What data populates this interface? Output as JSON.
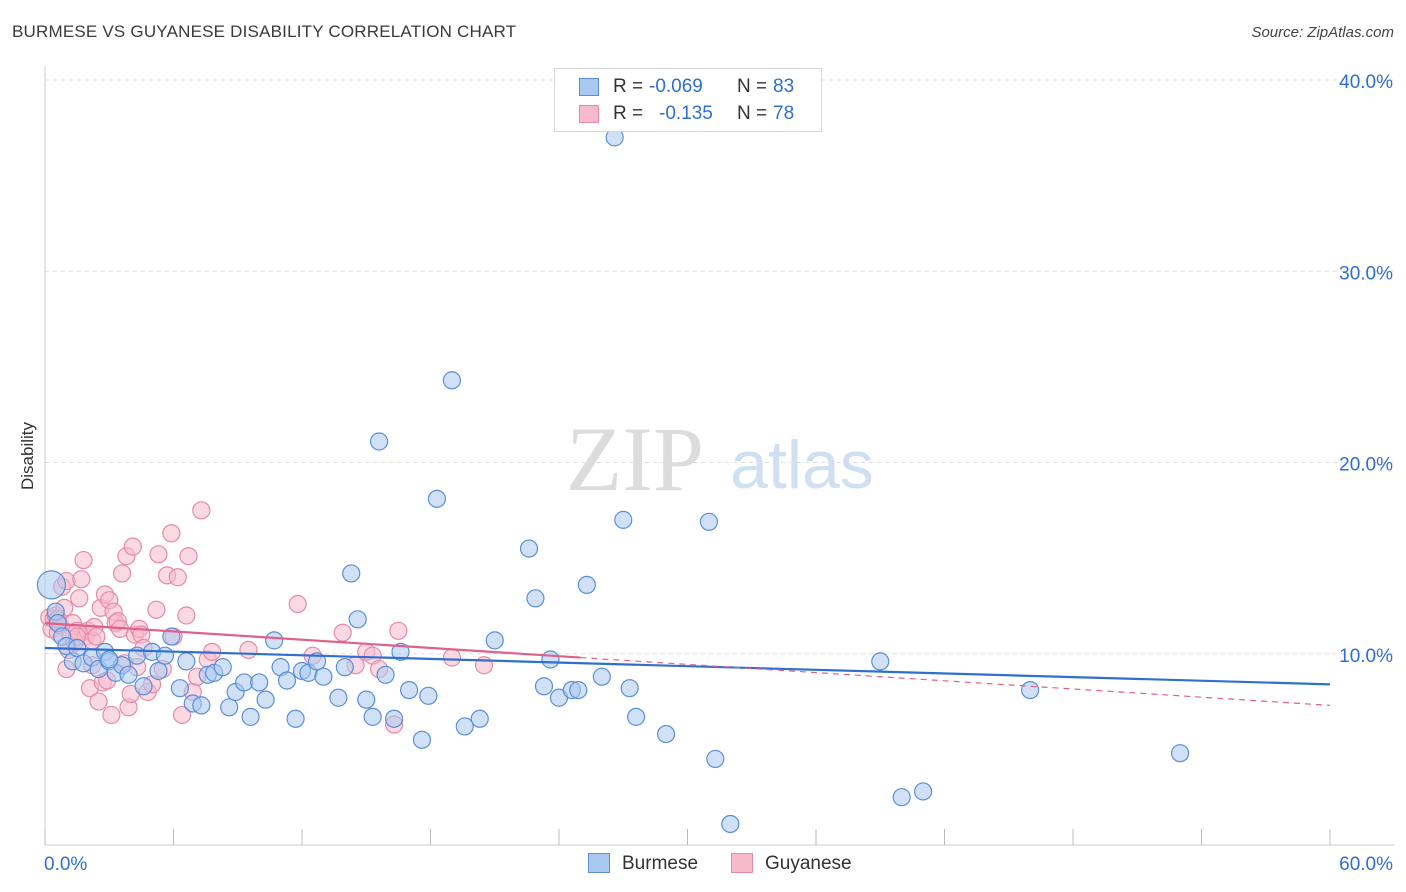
{
  "title": "BURMESE VS GUYANESE DISABILITY CORRELATION CHART",
  "source": "Source: ZipAtlas.com",
  "watermark": {
    "zip": "ZIP",
    "atlas": "atlas"
  },
  "legend_top": {
    "rows": [
      {
        "r_label": "R =",
        "r_value": "-0.069",
        "n_label": "N =",
        "n_value": "83"
      },
      {
        "r_label": "R =",
        "r_value": "-0.135",
        "n_label": "N =",
        "n_value": "78"
      }
    ]
  },
  "legend_bottom": [
    "Burmese",
    "Guyanese"
  ],
  "colors": {
    "burmese_fill": "#a9c8f0",
    "burmese_stroke": "#5a8fd8",
    "burmese_line": "#2f6fd0",
    "guyanese_fill": "#f7b9cc",
    "guyanese_stroke": "#e68aa8",
    "guyanese_line": "#e0608c",
    "axis_value_text": "#2f6fd0",
    "grid": "#dddddd"
  },
  "chart_data": {
    "type": "scatter",
    "title": "BURMESE VS GUYANESE DISABILITY CORRELATION CHART",
    "xlabel": "",
    "ylabel": "Disability",
    "xlim": [
      0,
      60
    ],
    "ylim": [
      0,
      40
    ],
    "x_tick_labels": [
      "0.0%",
      "60.0%"
    ],
    "y_tick_labels": [
      "10.0%",
      "20.0%",
      "30.0%",
      "40.0%"
    ],
    "y_ticks": [
      10,
      20,
      30,
      40
    ],
    "grid": true,
    "legend_position": "top-center",
    "series": [
      {
        "name": "Burmese",
        "r": -0.069,
        "n": 83,
        "trend": {
          "x": [
            0,
            60
          ],
          "y": [
            10.3,
            8.4
          ]
        },
        "points": [
          [
            0.3,
            13.6
          ],
          [
            0.5,
            12.2
          ],
          [
            0.6,
            11.6
          ],
          [
            0.8,
            10.9
          ],
          [
            1.0,
            10.4
          ],
          [
            1.3,
            9.6
          ],
          [
            1.5,
            10.3
          ],
          [
            1.8,
            9.5
          ],
          [
            2.2,
            9.8
          ],
          [
            2.5,
            9.2
          ],
          [
            2.8,
            10.1
          ],
          [
            3.0,
            9.6
          ],
          [
            3.3,
            9.0
          ],
          [
            3.6,
            9.4
          ],
          [
            3.9,
            8.9
          ],
          [
            4.3,
            9.9
          ],
          [
            4.6,
            8.3
          ],
          [
            5.0,
            10.1
          ],
          [
            5.3,
            9.1
          ],
          [
            5.6,
            9.9
          ],
          [
            5.9,
            10.9
          ],
          [
            6.3,
            8.2
          ],
          [
            6.6,
            9.6
          ],
          [
            6.9,
            7.4
          ],
          [
            7.3,
            7.3
          ],
          [
            7.6,
            8.9
          ],
          [
            7.9,
            9.0
          ],
          [
            8.3,
            9.3
          ],
          [
            8.6,
            7.2
          ],
          [
            8.9,
            8.0
          ],
          [
            9.3,
            8.5
          ],
          [
            9.6,
            6.7
          ],
          [
            10.0,
            8.5
          ],
          [
            10.3,
            7.6
          ],
          [
            10.7,
            10.7
          ],
          [
            11.0,
            9.3
          ],
          [
            11.3,
            8.6
          ],
          [
            11.7,
            6.6
          ],
          [
            12.0,
            9.1
          ],
          [
            12.3,
            9.0
          ],
          [
            12.7,
            9.6
          ],
          [
            13.0,
            8.8
          ],
          [
            13.7,
            7.7
          ],
          [
            14.0,
            9.3
          ],
          [
            14.3,
            14.2
          ],
          [
            14.6,
            11.8
          ],
          [
            15.0,
            7.6
          ],
          [
            15.3,
            6.7
          ],
          [
            15.6,
            21.1
          ],
          [
            15.9,
            8.9
          ],
          [
            16.3,
            6.6
          ],
          [
            16.6,
            10.1
          ],
          [
            17.0,
            8.1
          ],
          [
            17.6,
            5.5
          ],
          [
            17.9,
            7.8
          ],
          [
            18.3,
            18.1
          ],
          [
            19.0,
            24.3
          ],
          [
            19.6,
            6.2
          ],
          [
            20.3,
            6.6
          ],
          [
            21.0,
            10.7
          ],
          [
            22.6,
            15.5
          ],
          [
            22.9,
            12.9
          ],
          [
            23.3,
            8.3
          ],
          [
            23.6,
            9.7
          ],
          [
            24.0,
            7.7
          ],
          [
            24.6,
            8.1
          ],
          [
            24.9,
            8.1
          ],
          [
            25.3,
            13.6
          ],
          [
            26.0,
            8.8
          ],
          [
            26.6,
            37.0
          ],
          [
            27.0,
            17.0
          ],
          [
            27.3,
            8.2
          ],
          [
            27.6,
            6.7
          ],
          [
            29.0,
            5.8
          ],
          [
            31.0,
            16.9
          ],
          [
            31.3,
            4.5
          ],
          [
            32.0,
            1.1
          ],
          [
            39.0,
            9.6
          ],
          [
            40.0,
            2.5
          ],
          [
            41.0,
            2.8
          ],
          [
            46.0,
            8.1
          ],
          [
            53.0,
            4.8
          ],
          [
            3.0,
            9.7
          ]
        ]
      },
      {
        "name": "Guyanese",
        "r": -0.135,
        "n": 78,
        "trend": {
          "x": [
            0,
            25
          ],
          "y": [
            11.6,
            9.8
          ]
        },
        "trend_extension": {
          "x": [
            25,
            60
          ],
          "y": [
            9.8,
            7.3
          ]
        },
        "points": [
          [
            0.2,
            11.9
          ],
          [
            0.3,
            11.3
          ],
          [
            0.4,
            11.8
          ],
          [
            0.5,
            12.0
          ],
          [
            0.6,
            11.1
          ],
          [
            0.7,
            11.5
          ],
          [
            0.8,
            13.5
          ],
          [
            0.9,
            12.4
          ],
          [
            1.0,
            13.8
          ],
          [
            1.1,
            10.2
          ],
          [
            1.2,
            11.0
          ],
          [
            1.3,
            11.6
          ],
          [
            1.4,
            10.6
          ],
          [
            1.5,
            11.2
          ],
          [
            1.6,
            12.9
          ],
          [
            1.7,
            13.9
          ],
          [
            1.8,
            14.9
          ],
          [
            1.9,
            10.9
          ],
          [
            2.0,
            11.2
          ],
          [
            2.1,
            8.2
          ],
          [
            2.2,
            10.7
          ],
          [
            2.3,
            11.4
          ],
          [
            2.4,
            10.9
          ],
          [
            2.5,
            7.5
          ],
          [
            2.6,
            12.4
          ],
          [
            2.7,
            8.5
          ],
          [
            2.8,
            13.1
          ],
          [
            2.9,
            8.6
          ],
          [
            3.0,
            12.8
          ],
          [
            3.1,
            6.8
          ],
          [
            3.2,
            12.2
          ],
          [
            3.3,
            11.6
          ],
          [
            3.4,
            11.7
          ],
          [
            3.5,
            11.3
          ],
          [
            3.6,
            14.2
          ],
          [
            3.7,
            9.5
          ],
          [
            3.8,
            15.1
          ],
          [
            3.9,
            7.2
          ],
          [
            4.0,
            7.9
          ],
          [
            4.1,
            15.6
          ],
          [
            4.2,
            11.0
          ],
          [
            4.3,
            9.3
          ],
          [
            4.4,
            11.3
          ],
          [
            4.5,
            11.0
          ],
          [
            4.6,
            10.3
          ],
          [
            4.8,
            8.0
          ],
          [
            5.0,
            8.4
          ],
          [
            5.2,
            12.3
          ],
          [
            5.3,
            15.2
          ],
          [
            5.5,
            9.2
          ],
          [
            5.7,
            14.1
          ],
          [
            5.9,
            16.3
          ],
          [
            6.0,
            10.9
          ],
          [
            6.2,
            14.0
          ],
          [
            6.4,
            6.8
          ],
          [
            6.6,
            12.0
          ],
          [
            6.7,
            15.1
          ],
          [
            6.9,
            8.0
          ],
          [
            7.1,
            8.8
          ],
          [
            7.3,
            17.5
          ],
          [
            7.6,
            9.7
          ],
          [
            7.8,
            10.1
          ],
          [
            9.5,
            10.2
          ],
          [
            11.8,
            12.6
          ],
          [
            12.5,
            9.9
          ],
          [
            13.9,
            11.1
          ],
          [
            14.5,
            9.4
          ],
          [
            15.0,
            10.1
          ],
          [
            15.3,
            9.9
          ],
          [
            15.6,
            9.2
          ],
          [
            16.3,
            6.3
          ],
          [
            16.5,
            11.2
          ],
          [
            19.0,
            9.8
          ],
          [
            20.5,
            9.4
          ],
          [
            1.5,
            10.9
          ],
          [
            2.2,
            9.4
          ],
          [
            0.6,
            11.8
          ],
          [
            1.0,
            9.2
          ]
        ]
      }
    ]
  }
}
